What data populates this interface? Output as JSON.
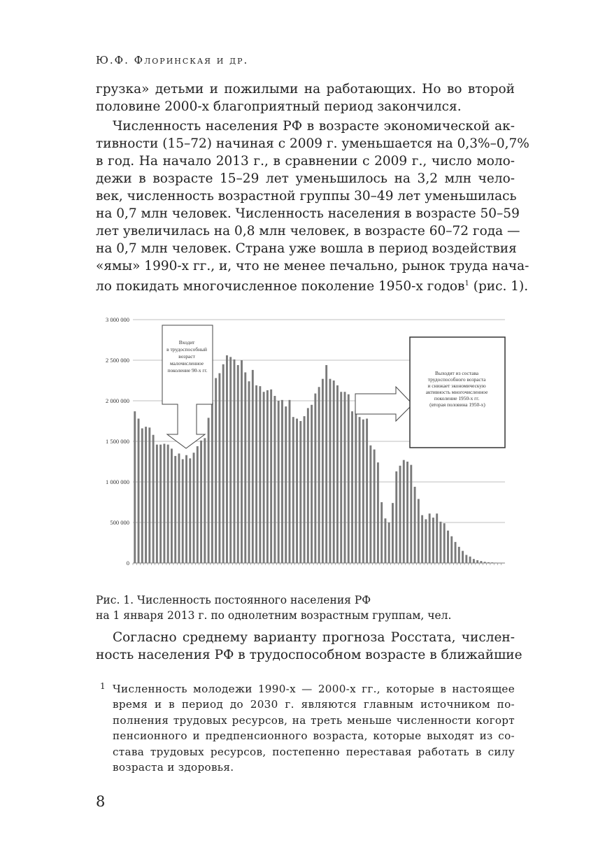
{
  "header": "Ю.Ф. Флоринская и др.",
  "paragraph1": [
    "грузка» детьми и пожилыми на работающих. Но во второй",
    "половине 2000-х благоприятный период закончился."
  ],
  "paragraph2": [
    "Численность населения РФ в возрасте экономической ак-",
    "тивности (15–72) начиная с 2009 г. уменьшается на 0,3%–0,7%",
    "в год. На начало 2013 г., в сравнении с 2009 г., число моло-",
    "дежи в возрасте 15–29 лет уменьшилось на 3,2 млн чело-",
    "век, численность возрастной группы 30–49 лет уменьшилась",
    "на 0,7 млн человек. Численность населения в возрасте 50–59",
    "лет увеличилась на 0,8 млн человек, в возрасте 60–72 года —",
    "на 0,7 млн человек. Страна уже вошла в период воздействия",
    "«ямы» 1990-х гг., и, что не менее печально, рынок труда нача-",
    "ло покидать многочисленное поколение 1950-х годов"
  ],
  "paragraph2_footnote_ref": "1",
  "paragraph2_tail": " (рис. 1).",
  "chart_data": {
    "type": "bar",
    "title": "",
    "xlabel": "",
    "ylabel": "",
    "ylim": [
      0,
      3000000
    ],
    "yticks": [
      "0",
      "500 000",
      "1 000 000",
      "1 500 000",
      "2 000 000",
      "2 500 000",
      "3 000 000"
    ],
    "grid": true,
    "bar_color": "#7a7a7a",
    "values": [
      1870000,
      1780000,
      1660000,
      1680000,
      1670000,
      1580000,
      1460000,
      1460000,
      1470000,
      1460000,
      1410000,
      1320000,
      1350000,
      1280000,
      1330000,
      1290000,
      1360000,
      1440000,
      1510000,
      1540000,
      1790000,
      1980000,
      2280000,
      2340000,
      2450000,
      2560000,
      2540000,
      2510000,
      2440000,
      2500000,
      2350000,
      2240000,
      2380000,
      2190000,
      2180000,
      2110000,
      2130000,
      2140000,
      2060000,
      2000000,
      2010000,
      1930000,
      2010000,
      1800000,
      1780000,
      1750000,
      1810000,
      1910000,
      1950000,
      2090000,
      2170000,
      2270000,
      2440000,
      2270000,
      2250000,
      2190000,
      2110000,
      2110000,
      2080000,
      1870000,
      1880000,
      1800000,
      1770000,
      1780000,
      1450000,
      1400000,
      1240000,
      750000,
      550000,
      500000,
      740000,
      1130000,
      1200000,
      1270000,
      1250000,
      1210000,
      940000,
      790000,
      590000,
      540000,
      610000,
      560000,
      610000,
      510000,
      490000,
      400000,
      330000,
      260000,
      200000,
      150000,
      100000,
      80000,
      50000,
      35000,
      25000,
      15000,
      10000,
      8000,
      5000,
      3000,
      2000
    ],
    "annotations": [
      {
        "lines": [
          "Входит",
          "в трудоспособный",
          "возраст",
          "малочисленное",
          "поколение 90-х гг."
        ]
      },
      {
        "lines": [
          "Выходит из состава",
          "трудоспособного возраста",
          "и снижает экономическую",
          "активность многочисленное",
          "поколение 1950-х гг.",
          "(вторая половина 1950-х)"
        ]
      }
    ]
  },
  "caption": [
    "Рис. 1. Численность постоянного населения РФ",
    "на 1 января 2013 г. по однолетним возрастным группам, чел."
  ],
  "paragraph3": [
    "Согласно среднему варианту прогноза Росстата, числен-",
    "ность населения РФ в трудоспособном возрасте в ближайшие"
  ],
  "footnote": {
    "mark": "1",
    "lines": [
      "Численность молодежи 1990-х — 2000-х гг., которые в настоящее",
      "время и в период до 2030 г. являются главным источником по-",
      "полнения трудовых ресурсов, на треть меньше численности когорт",
      "пенсионного и предпенсионного возраста, которые выходят из со-",
      "става трудовых ресурсов, постепенно переставая работать в силу",
      "возраста и здоровья."
    ]
  },
  "page_number": "8"
}
